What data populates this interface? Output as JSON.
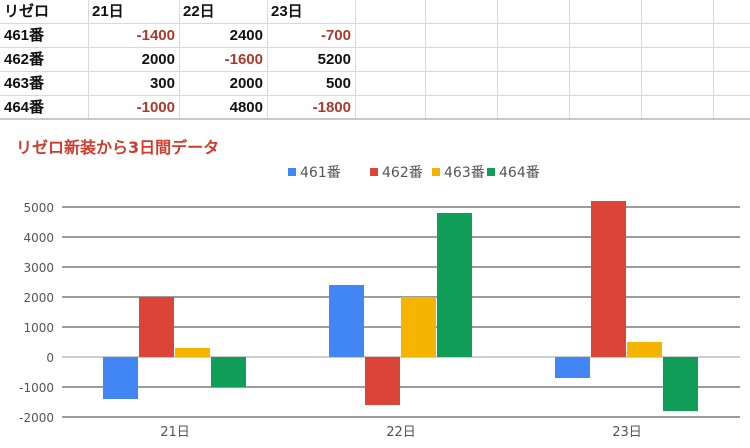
{
  "sheet": {
    "header": [
      "リゼロ",
      "21日",
      "22日",
      "23日"
    ],
    "rows": [
      {
        "label": "461番",
        "values": [
          "-1400",
          "2400",
          "-700"
        ]
      },
      {
        "label": "462番",
        "values": [
          "2000",
          "-1600",
          "5200"
        ]
      },
      {
        "label": "463番",
        "values": [
          "300",
          "2000",
          "500"
        ]
      },
      {
        "label": "464番",
        "values": [
          "-1000",
          "4800",
          "-1800"
        ]
      }
    ]
  },
  "chart_data": {
    "type": "bar",
    "title": "リゼロ新装から3日間データ",
    "categories": [
      "21日",
      "22日",
      "23日"
    ],
    "series": [
      {
        "name": "461番",
        "color": "#4285f4",
        "values": [
          -1400,
          2400,
          -700
        ]
      },
      {
        "name": "462番",
        "color": "#db4437",
        "values": [
          2000,
          -1600,
          5200
        ]
      },
      {
        "name": "463番",
        "color": "#f4b400",
        "values": [
          300,
          2000,
          500
        ]
      },
      {
        "name": "464番",
        "color": "#0f9d58",
        "values": [
          -1000,
          4800,
          -1800
        ]
      }
    ],
    "ylim": [
      -2000,
      5000
    ],
    "yticks": [
      "5000",
      "4000",
      "3000",
      "2000",
      "1000",
      "0",
      "-1000",
      "-2000"
    ],
    "grid": true,
    "legend": "top-center"
  }
}
